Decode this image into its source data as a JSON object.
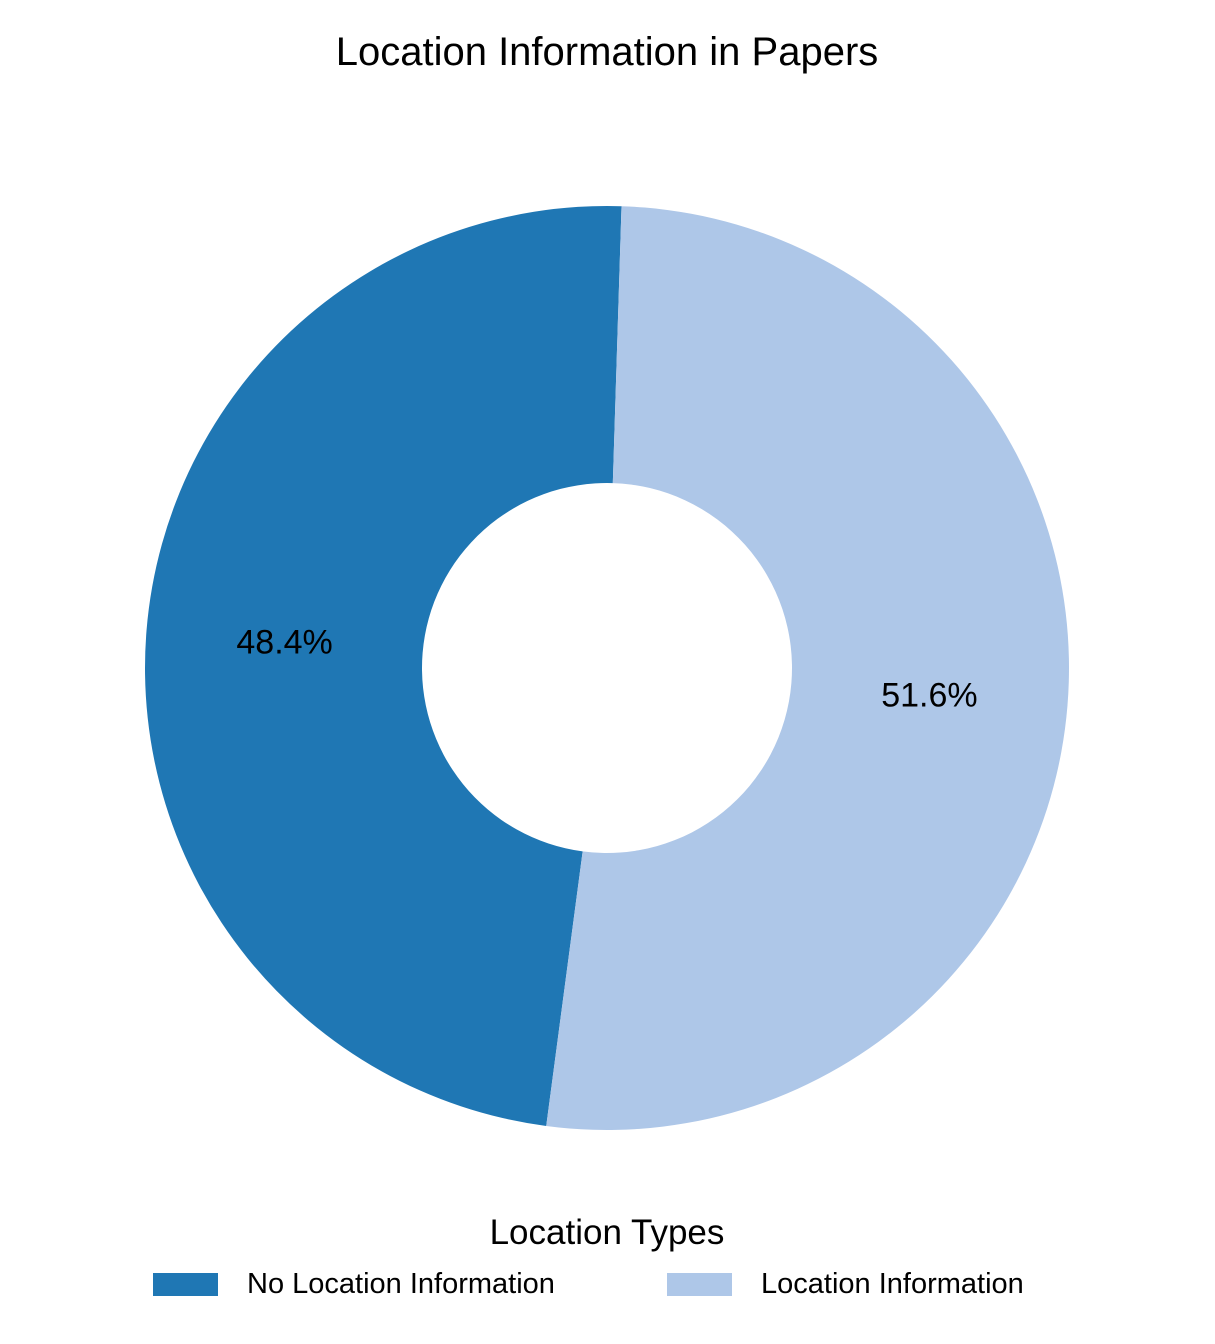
{
  "chart_data": {
    "type": "pie",
    "variant": "donut",
    "title": "Location Information in Papers",
    "legend_title": "Location Types",
    "legend_placement": "bottom",
    "slices": [
      {
        "label": "No Location Information",
        "value": 48.4,
        "percent_label": "48.4%",
        "color": "#1f77b4"
      },
      {
        "label": "Location Information",
        "value": 51.6,
        "percent_label": "51.6%",
        "color": "#aec7e8"
      }
    ]
  }
}
